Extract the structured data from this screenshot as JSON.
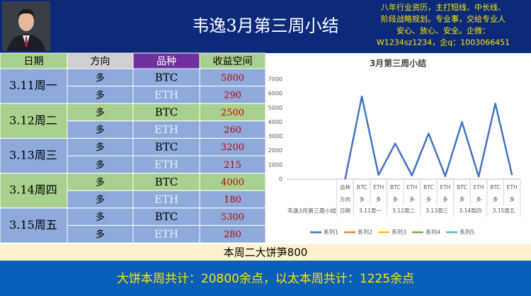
{
  "header": {
    "title": "韦逸3月第三周小结",
    "info": [
      "八年行业资历，主打短线、中长线、",
      "阶段战略规划。专业事，交给专业人",
      "安心、放心、安全。企微：",
      "W1234sz1234，企q：1003066451"
    ]
  },
  "table": {
    "columns": [
      "日期",
      "方向",
      "品种",
      "收益空间"
    ],
    "rows": [
      [
        "3.11周一",
        "多",
        "BTC",
        5800
      ],
      [
        null,
        "多",
        "ETH",
        290
      ],
      [
        "3.12周二",
        "多",
        "BTC",
        2500
      ],
      [
        null,
        "多",
        "ETH",
        260
      ],
      [
        "3.13周三",
        "多",
        "BTC",
        3200
      ],
      [
        null,
        "多",
        "ETH",
        215
      ],
      [
        "3.14周四",
        "多",
        "BTC",
        4000
      ],
      [
        null,
        "多",
        "ETH",
        180
      ],
      [
        "3.15周五",
        "多",
        "BTC",
        5300
      ],
      [
        null,
        "多",
        "ETH",
        280
      ]
    ]
  },
  "chart_data": {
    "type": "line",
    "title": "3月第三周小结",
    "category_levels": [
      [
        null,
        null,
        null,
        "品种",
        "BTC",
        "ETH",
        "BTC",
        "ETH",
        "BTC",
        "ETH",
        "BTC",
        "ETH",
        "BTC",
        "ETH"
      ],
      [
        null,
        null,
        null,
        "方向",
        "多",
        "多",
        "多",
        "多",
        "多",
        "多",
        "多",
        "多",
        "多",
        "多"
      ],
      [
        "韦逸3月第三周小结",
        null,
        null,
        "日期",
        "3.11周一",
        null,
        "3.12周二",
        null,
        "3.13周三",
        null,
        "3.14周四",
        null,
        "3.15周五",
        null
      ]
    ],
    "series": [
      {
        "name": "系列1",
        "color": "#4472c4",
        "values": [
          null,
          null,
          null,
          0,
          5800,
          290,
          2500,
          260,
          3200,
          215,
          4000,
          180,
          5300,
          280
        ]
      },
      {
        "name": "系列2",
        "color": "#ed7d31"
      },
      {
        "name": "系列3",
        "color": "#ffc000"
      },
      {
        "name": "系列4",
        "color": "#70ad47"
      },
      {
        "name": "系列5",
        "color": "#4bc0c0"
      }
    ],
    "ylim": [
      0,
      7000
    ],
    "yticks": [
      0,
      1000,
      2000,
      3000,
      4000,
      5000,
      6000,
      7000
    ],
    "grid": false,
    "legend": "bottom"
  },
  "notes": {
    "highlight": "本周二大饼笋800",
    "summary": "大饼本周共计：20800余点，以太本周共计：1225余点"
  }
}
